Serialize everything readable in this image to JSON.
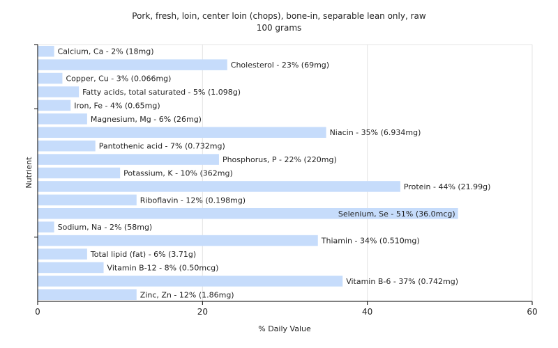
{
  "chart_data": {
    "type": "bar",
    "orientation": "horizontal",
    "title": "Pork, fresh, loin, center loin (chops), bone-in, separable lean only, raw",
    "subtitle": "100 grams",
    "xlabel": "% Daily Value",
    "ylabel": "Nutrient",
    "xlim": [
      0,
      60
    ],
    "xticks": [
      0,
      20,
      40,
      60
    ],
    "grid": true,
    "bar_color": "#c6dcfb",
    "categories": [
      "Calcium, Ca",
      "Cholesterol",
      "Copper, Cu",
      "Fatty acids, total saturated",
      "Iron, Fe",
      "Magnesium, Mg",
      "Niacin",
      "Pantothenic acid",
      "Phosphorus, P",
      "Potassium, K",
      "Protein",
      "Riboflavin",
      "Selenium, Se",
      "Sodium, Na",
      "Thiamin",
      "Total lipid (fat)",
      "Vitamin B-12",
      "Vitamin B-6",
      "Zinc, Zn"
    ],
    "values": [
      2,
      23,
      3,
      5,
      4,
      6,
      35,
      7,
      22,
      10,
      44,
      12,
      51,
      2,
      34,
      6,
      8,
      37,
      12
    ],
    "labels": [
      "Calcium, Ca - 2% (18mg)",
      "Cholesterol - 23% (69mg)",
      "Copper, Cu - 3% (0.066mg)",
      "Fatty acids, total saturated - 5% (1.098g)",
      "Iron, Fe - 4% (0.65mg)",
      "Magnesium, Mg - 6% (26mg)",
      "Niacin - 35% (6.934mg)",
      "Pantothenic acid - 7% (0.732mg)",
      "Phosphorus, P - 22% (220mg)",
      "Potassium, K - 10% (362mg)",
      "Protein - 44% (21.99g)",
      "Riboflavin - 12% (0.198mg)",
      "Selenium, Se - 51% (36.0mcg)",
      "Sodium, Na - 2% (58mg)",
      "Thiamin - 34% (0.510mg)",
      "Total lipid (fat) - 6% (3.71g)",
      "Vitamin B-12 - 8% (0.50mcg)",
      "Vitamin B-6 - 37% (0.742mg)",
      "Zinc, Zn - 12% (1.86mg)"
    ]
  }
}
